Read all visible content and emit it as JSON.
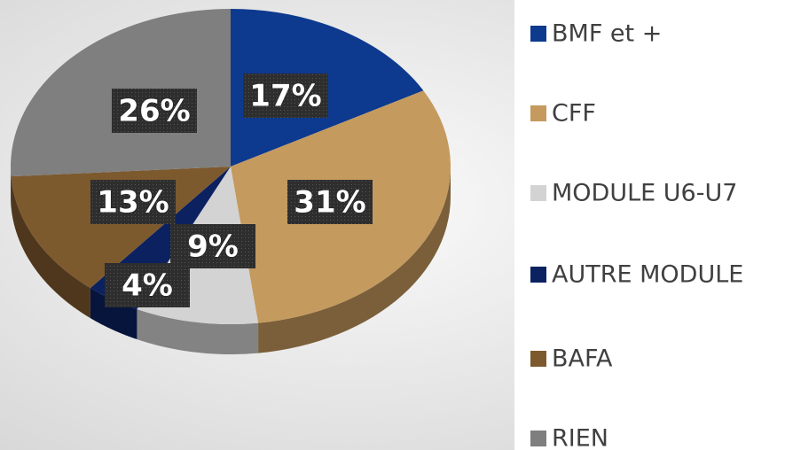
{
  "chart_data": {
    "type": "pie",
    "categories": [
      "BMF et +",
      "CFF",
      "MODULE U6-U7",
      "AUTRE MODULE",
      "BAFA",
      "RIEN"
    ],
    "values": [
      17,
      31,
      9,
      4,
      13,
      26
    ],
    "value_labels": [
      "17%",
      "31%",
      "9%",
      "4%",
      "13%",
      "26%"
    ],
    "colors": [
      "#0d3a8e",
      "#c49a5e",
      "#d3d3d3",
      "#0b2160",
      "#7d592e",
      "#7f7f7f"
    ],
    "legend": "right"
  }
}
